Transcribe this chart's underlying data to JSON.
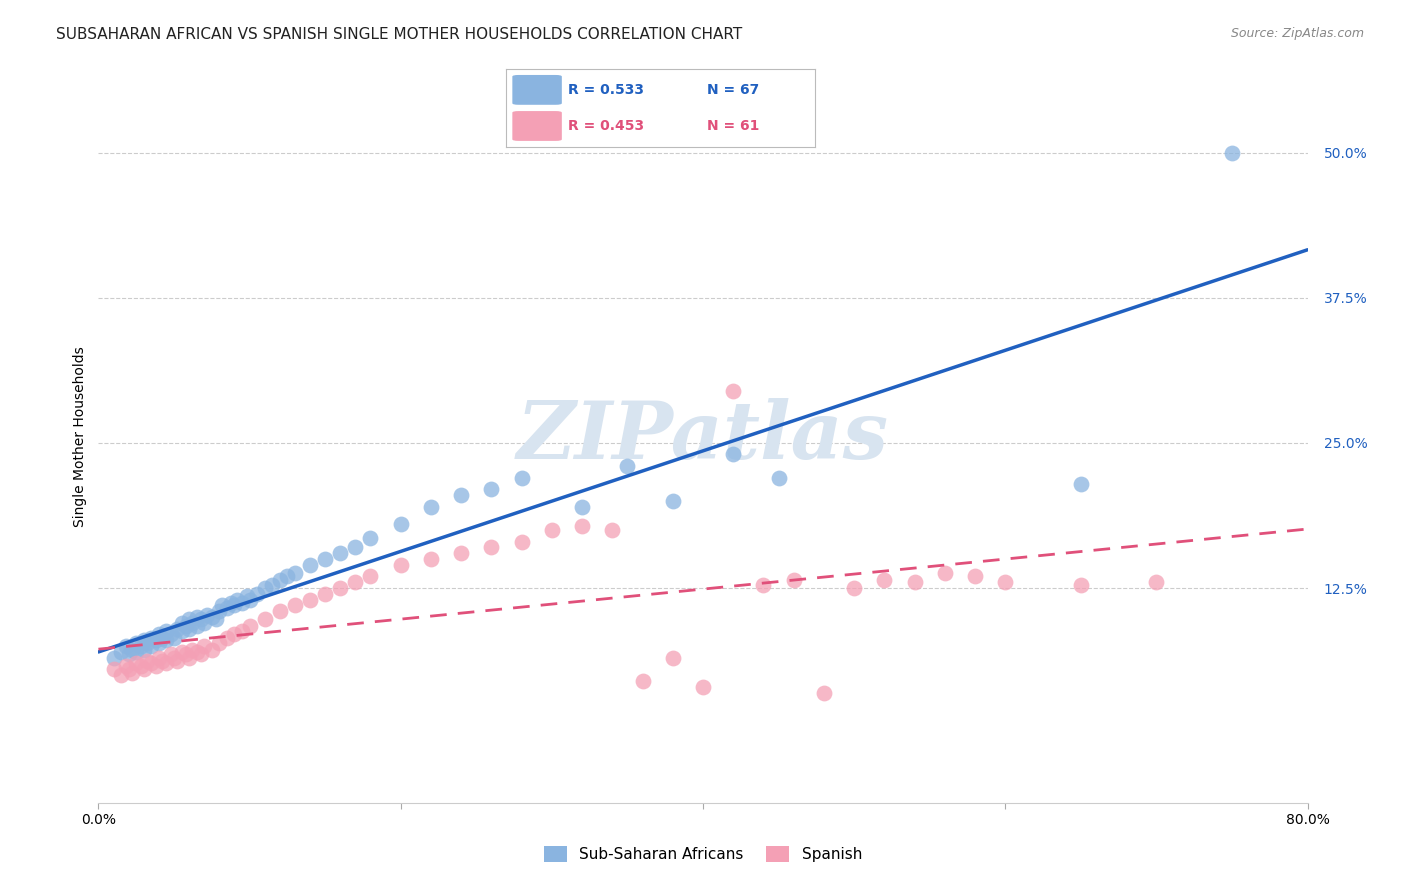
{
  "title": "SUBSAHARAN AFRICAN VS SPANISH SINGLE MOTHER HOUSEHOLDS CORRELATION CHART",
  "source": "Source: ZipAtlas.com",
  "ylabel": "Single Mother Households",
  "ytick_labels": [
    "12.5%",
    "25.0%",
    "37.5%",
    "50.0%"
  ],
  "ytick_values": [
    0.125,
    0.25,
    0.375,
    0.5
  ],
  "xlim": [
    0.0,
    0.8
  ],
  "ylim": [
    -0.06,
    0.57
  ],
  "legend_blue_r": "R = 0.533",
  "legend_blue_n": "N = 67",
  "legend_pink_r": "R = 0.453",
  "legend_pink_n": "N = 61",
  "blue_color": "#8ab4e0",
  "pink_color": "#f4a0b5",
  "blue_line_color": "#2060c0",
  "pink_line_color": "#e0507a",
  "watermark_color": "#d8e4f0",
  "background_color": "#ffffff",
  "grid_color": "#cccccc",
  "title_fontsize": 11,
  "source_fontsize": 9,
  "label_fontsize": 10,
  "tick_fontsize": 10
}
